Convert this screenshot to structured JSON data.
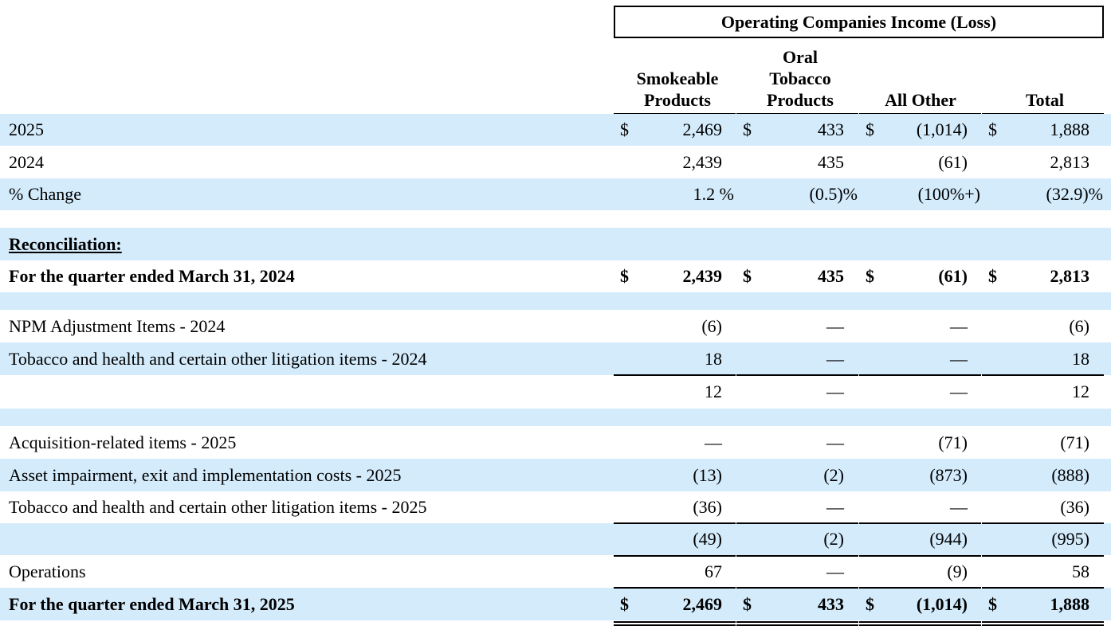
{
  "header": {
    "group_title": "Operating Companies Income (Loss)",
    "columns": [
      {
        "lines": [
          "Smokeable",
          "Products"
        ]
      },
      {
        "lines": [
          "Oral",
          "Tobacco",
          "Products"
        ]
      },
      {
        "lines": [
          "All Other"
        ]
      },
      {
        "lines": [
          "Total"
        ]
      }
    ]
  },
  "rows": [
    {
      "label": "2025",
      "band": true,
      "bold": false,
      "dollar": true,
      "values": [
        "2,469",
        "433",
        "(1,014)",
        "1,888"
      ]
    },
    {
      "label": "2024",
      "band": false,
      "bold": false,
      "dollar": false,
      "values": [
        "2,439",
        "435",
        "(61)",
        "2,813"
      ]
    },
    {
      "label": "% Change",
      "band": true,
      "bold": false,
      "dollar": false,
      "pct": true,
      "values": [
        "1.2 %",
        "(0.5)%",
        "(100%+)",
        "(32.9)%"
      ]
    },
    {
      "label": "",
      "band": false,
      "bold": false,
      "dollar": false,
      "values": [
        "",
        "",
        "",
        ""
      ],
      "spacer": true
    },
    {
      "label": "Reconciliation:",
      "band": true,
      "bold": true,
      "underline": true,
      "dollar": false,
      "values": [
        "",
        "",
        "",
        ""
      ]
    },
    {
      "label": "For the quarter ended March 31, 2024",
      "band": false,
      "bold": true,
      "dollar": true,
      "values": [
        "2,439",
        "435",
        "(61)",
        "2,813"
      ]
    },
    {
      "label": "",
      "band": true,
      "bold": false,
      "dollar": false,
      "values": [
        "",
        "",
        "",
        ""
      ],
      "spacer": true
    },
    {
      "label": "NPM Adjustment Items - 2024",
      "band": false,
      "bold": false,
      "dollar": false,
      "values": [
        "(6)",
        "—",
        "—",
        "(6)"
      ]
    },
    {
      "label": "Tobacco and health and certain other litigation items - 2024",
      "band": true,
      "bold": false,
      "dollar": false,
      "values": [
        "18",
        "—",
        "—",
        "18"
      ]
    },
    {
      "label": "",
      "band": false,
      "bold": false,
      "dollar": false,
      "values": [
        "12",
        "—",
        "—",
        "12"
      ],
      "topline": true,
      "bottomline": true
    },
    {
      "label": "",
      "band": true,
      "bold": false,
      "dollar": false,
      "values": [
        "",
        "",
        "",
        ""
      ],
      "spacer": true
    },
    {
      "label": "Acquisition-related items - 2025",
      "band": false,
      "bold": false,
      "dollar": false,
      "values": [
        "—",
        "—",
        "(71)",
        "(71)"
      ]
    },
    {
      "label": "Asset impairment, exit and implementation costs - 2025",
      "band": true,
      "bold": false,
      "dollar": false,
      "values": [
        "(13)",
        "(2)",
        "(873)",
        "(888)"
      ]
    },
    {
      "label": "Tobacco and health and certain other litigation items - 2025",
      "band": false,
      "bold": false,
      "dollar": false,
      "values": [
        "(36)",
        "—",
        "—",
        "(36)"
      ]
    },
    {
      "label": "",
      "band": true,
      "bold": false,
      "dollar": false,
      "values": [
        "(49)",
        "(2)",
        "(944)",
        "(995)"
      ],
      "topline": true,
      "bottomline": true
    },
    {
      "label": "Operations",
      "band": false,
      "bold": false,
      "dollar": false,
      "values": [
        "67",
        "—",
        "(9)",
        "58"
      ]
    },
    {
      "label": "For the quarter ended March 31, 2025",
      "band": true,
      "bold": true,
      "dollar": true,
      "values": [
        "2,469",
        "433",
        "(1,014)",
        "1,888"
      ],
      "topline": true,
      "doubleline": true
    }
  ],
  "currency_symbol": "$"
}
